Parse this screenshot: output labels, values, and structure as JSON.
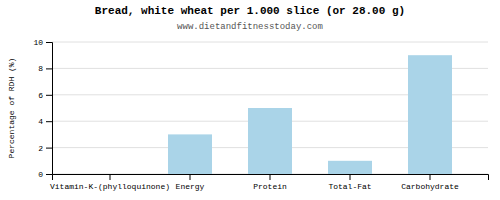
{
  "chart_data": {
    "type": "bar",
    "title": "Bread, white wheat per 1.000 slice (or 28.00 g)",
    "subtitle": "www.dietandfitnesstoday.com",
    "categories": [
      "Vitamin-K-(phylloquinone)",
      "Energy",
      "Protein",
      "Total-Fat",
      "Carbohydrate"
    ],
    "values": [
      0,
      3,
      5,
      1,
      9
    ],
    "color": "#aad4e8",
    "ylabel": "Percentage of RDH (%)",
    "ylim": [
      0,
      10
    ],
    "yticks": [
      0,
      2,
      4,
      6,
      8,
      10
    ],
    "grid": true
  }
}
